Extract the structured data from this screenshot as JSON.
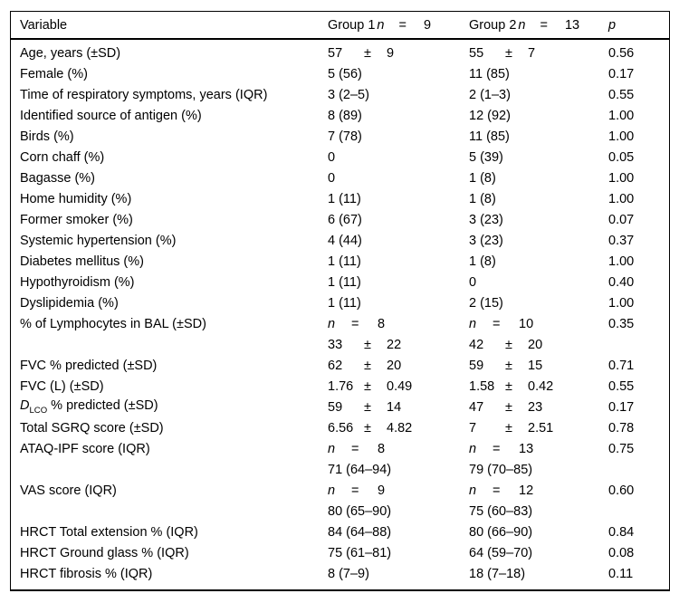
{
  "table": {
    "pm_symbol": "±",
    "eq_symbol": "=",
    "n_symbol": "n",
    "header": {
      "variable_label": "Variable",
      "group1": {
        "name": "Group 1",
        "n_symbol": "n",
        "eq": "=",
        "n_value": "9"
      },
      "group2": {
        "name": "Group 2",
        "n_symbol": "n",
        "eq": "=",
        "n_value": "13"
      },
      "p_label": "p"
    },
    "rows": [
      {
        "label": "Age, years (±SD)",
        "g1": {
          "pm": [
            "57",
            "9"
          ]
        },
        "g2": {
          "pm": [
            "55",
            "7"
          ]
        },
        "p": "0.56"
      },
      {
        "label": "Female (%)",
        "g1": {
          "text": "5 (56)"
        },
        "g2": {
          "text": "11 (85)"
        },
        "p": "0.17"
      },
      {
        "label": "Time of respiratory symptoms, years (IQR)",
        "g1": {
          "text": "3 (2–5)"
        },
        "g2": {
          "text": "2 (1–3)"
        },
        "p": "0.55"
      },
      {
        "label": "Identified source of antigen (%)",
        "g1": {
          "text": "8 (89)"
        },
        "g2": {
          "text": "12 (92)"
        },
        "p": "1.00"
      },
      {
        "label": "Birds (%)",
        "g1": {
          "text": "7 (78)"
        },
        "g2": {
          "text": "11 (85)"
        },
        "p": "1.00"
      },
      {
        "label": "Corn chaff (%)",
        "g1": {
          "text": "0"
        },
        "g2": {
          "text": "5 (39)"
        },
        "p": "0.05"
      },
      {
        "label": "Bagasse (%)",
        "g1": {
          "text": "0"
        },
        "g2": {
          "text": "1 (8)"
        },
        "p": "1.00"
      },
      {
        "label": "Home humidity (%)",
        "g1": {
          "text": "1 (11)"
        },
        "g2": {
          "text": "1 (8)"
        },
        "p": "1.00"
      },
      {
        "label": "Former smoker (%)",
        "g1": {
          "text": "6 (67)"
        },
        "g2": {
          "text": "3 (23)"
        },
        "p": "0.07"
      },
      {
        "label": "Systemic hypertension (%)",
        "g1": {
          "text": "4 (44)"
        },
        "g2": {
          "text": "3 (23)"
        },
        "p": "0.37"
      },
      {
        "label": "Diabetes mellitus (%)",
        "g1": {
          "text": "1 (11)"
        },
        "g2": {
          "text": "1 (8)"
        },
        "p": "1.00"
      },
      {
        "label": "Hypothyroidism (%)",
        "g1": {
          "text": "1 (11)"
        },
        "g2": {
          "text": "0"
        },
        "p": "0.40"
      },
      {
        "label": "Dyslipidemia (%)",
        "g1": {
          "text": "1 (11)"
        },
        "g2": {
          "text": "2 (15)"
        },
        "p": "1.00"
      },
      {
        "label": "% of Lymphocytes in BAL (±SD)",
        "g1": {
          "neq": "8"
        },
        "g2": {
          "neq": "10"
        },
        "p": "0.35"
      },
      {
        "label": "",
        "g1": {
          "pm": [
            "33",
            "22"
          ]
        },
        "g2": {
          "pm": [
            "42",
            "20"
          ]
        },
        "p": ""
      },
      {
        "label": "FVC % predicted (±SD)",
        "g1": {
          "pm": [
            "62",
            "20"
          ]
        },
        "g2": {
          "pm": [
            "59",
            "15"
          ]
        },
        "p": "0.71"
      },
      {
        "label": "FVC (L) (±SD)",
        "g1": {
          "pm": [
            "1.76",
            "0.49"
          ]
        },
        "g2": {
          "pm": [
            "1.58",
            "0.42"
          ]
        },
        "p": "0.55"
      },
      {
        "label": {
          "italic": "D",
          "sub": "LCO",
          "rest": " % predicted (±SD)"
        },
        "g1": {
          "pm": [
            "59",
            "14"
          ]
        },
        "g2": {
          "pm": [
            "47",
            "23"
          ]
        },
        "p": "0.17"
      },
      {
        "label": "Total SGRQ score (±SD)",
        "g1": {
          "pm": [
            "6.56",
            "4.82"
          ]
        },
        "g2": {
          "pm": [
            "7",
            "2.51"
          ]
        },
        "p": "0.78"
      },
      {
        "label": "ATAQ-IPF score (IQR)",
        "g1": {
          "neq": "8"
        },
        "g2": {
          "neq": "13"
        },
        "p": "0.75"
      },
      {
        "label": "",
        "g1": {
          "text": "71 (64–94)"
        },
        "g2": {
          "text": "79 (70–85)"
        },
        "p": ""
      },
      {
        "label": "VAS score (IQR)",
        "g1": {
          "neq": "9"
        },
        "g2": {
          "neq": "12"
        },
        "p": "0.60"
      },
      {
        "label": "",
        "g1": {
          "text": "80 (65–90)"
        },
        "g2": {
          "text": "75 (60–83)"
        },
        "p": ""
      },
      {
        "label": "HRCT Total extension % (IQR)",
        "g1": {
          "text": "84 (64–88)"
        },
        "g2": {
          "text": "80 (66–90)"
        },
        "p": "0.84"
      },
      {
        "label": "HRCT Ground glass % (IQR)",
        "g1": {
          "text": "75 (61–81)"
        },
        "g2": {
          "text": "64 (59–70)"
        },
        "p": "0.08"
      },
      {
        "label": "HRCT fibrosis % (IQR)",
        "g1": {
          "text": "8 (7–9)"
        },
        "g2": {
          "text": "18 (7–18)"
        },
        "p": "0.11"
      }
    ]
  }
}
